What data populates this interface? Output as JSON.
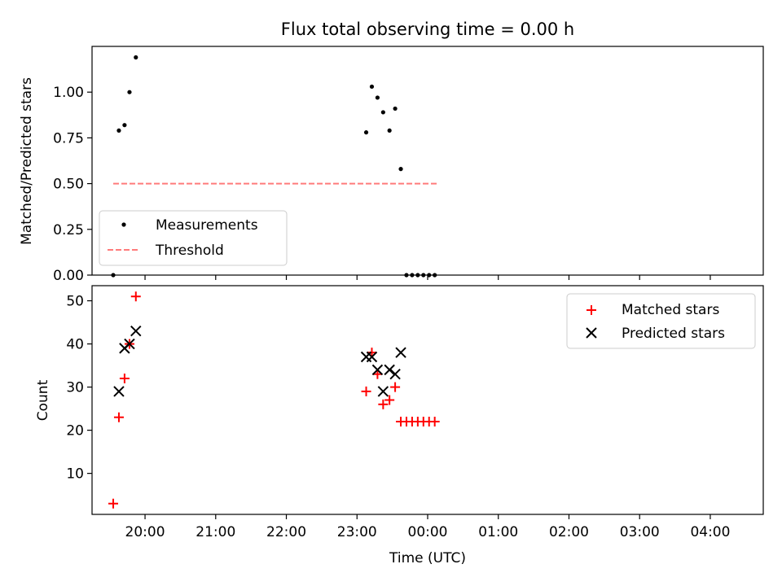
{
  "chart_data": [
    {
      "type": "scatter",
      "title": "Flux total observing time = 0.00 h",
      "xlabel": "",
      "ylabel": "Matched/Predicted stars",
      "xlim": [
        -0.75,
        8.75
      ],
      "ylim": [
        0.0,
        1.25
      ],
      "yticks": [
        "0.00",
        "0.25",
        "0.50",
        "0.75",
        "1.00"
      ],
      "legend_position": "lower-left",
      "series": [
        {
          "name": "Measurements",
          "marker": "dot",
          "color": "#000000",
          "x": [
            -0.45,
            -0.37,
            -0.29,
            -0.22,
            -0.13,
            3.13,
            3.21,
            3.29,
            3.37,
            3.46,
            3.54,
            3.62,
            3.7,
            3.78,
            3.86,
            3.94,
            4.02,
            4.1
          ],
          "y": [
            0.0,
            0.79,
            0.82,
            1.0,
            1.19,
            0.78,
            1.03,
            0.97,
            0.89,
            0.79,
            0.91,
            0.58,
            0.0,
            0.0,
            0.0,
            0.0,
            0.0,
            0.0
          ]
        },
        {
          "name": "Threshold",
          "marker": "dashed-line",
          "color": "#ff7b7b",
          "x": [
            -0.45,
            4.15
          ],
          "y": [
            0.5,
            0.5
          ]
        }
      ]
    },
    {
      "type": "scatter",
      "title": "",
      "xlabel": "Time (UTC)",
      "ylabel": "Count",
      "xlim": [
        -0.75,
        8.75
      ],
      "ylim": [
        0.5,
        53.5
      ],
      "yticks": [
        "10",
        "20",
        "30",
        "40",
        "50"
      ],
      "xticks": [
        "20:00",
        "21:00",
        "22:00",
        "23:00",
        "00:00",
        "01:00",
        "02:00",
        "03:00",
        "04:00"
      ],
      "legend_position": "upper-right",
      "series": [
        {
          "name": "Matched stars",
          "marker": "plus",
          "color": "#ff0000",
          "x": [
            -0.45,
            -0.37,
            -0.29,
            -0.22,
            -0.13,
            3.13,
            3.21,
            3.29,
            3.37,
            3.46,
            3.54,
            3.62,
            3.7,
            3.78,
            3.86,
            3.94,
            4.02,
            4.1
          ],
          "y": [
            3,
            23,
            32,
            40,
            51,
            29,
            38,
            33,
            26,
            27,
            30,
            22,
            22,
            22,
            22,
            22,
            22,
            22
          ]
        },
        {
          "name": "Predicted stars",
          "marker": "x",
          "color": "#000000",
          "x": [
            -0.37,
            -0.29,
            -0.22,
            -0.13,
            3.13,
            3.21,
            3.29,
            3.37,
            3.46,
            3.54,
            3.62
          ],
          "y": [
            29,
            39,
            40,
            43,
            37,
            37,
            34,
            29,
            34,
            33,
            38
          ]
        }
      ]
    }
  ]
}
